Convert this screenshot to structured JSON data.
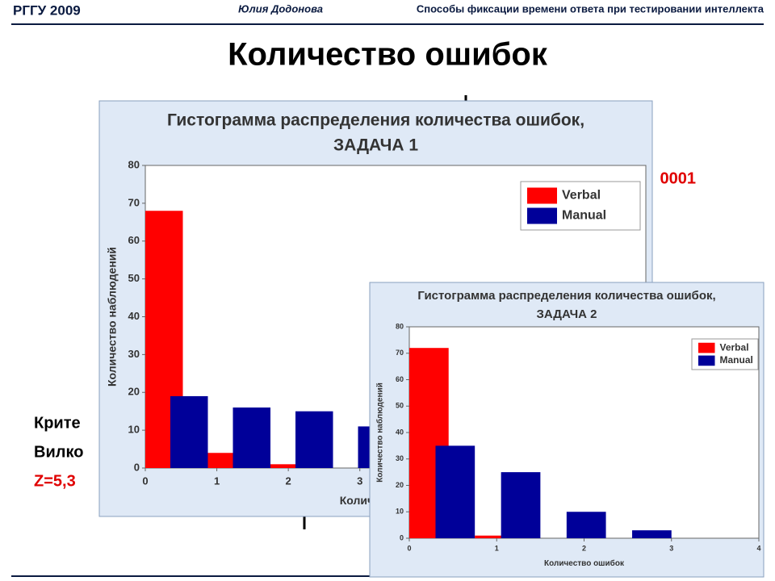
{
  "header": {
    "left": "РГГУ 2009",
    "author": "Юлия Додонова",
    "topic": "Способы фиксации времени ответа при тестировании интеллекта"
  },
  "title": "Количество ошибок",
  "background_text": [
    "0001",
    "Крите",
    "Вилко",
    "Z=5,3"
  ],
  "chart_data": [
    {
      "type": "histogram",
      "title": [
        "Гистограмма распределения количества ошибок,",
        "ЗАДАЧА 1"
      ],
      "x_label": "Количество ошибок",
      "y_label": "Количество наблюдений",
      "bins": [
        0,
        0.875,
        1.75,
        2.625,
        3.5
      ],
      "series": [
        {
          "name": "Verbal",
          "color": "#ff0000",
          "values": [
            68,
            4,
            1,
            0
          ]
        },
        {
          "name": "Manual",
          "color": "#000099",
          "values": [
            19,
            16,
            15,
            11
          ]
        }
      ],
      "xlim": [
        0,
        7
      ],
      "xticks": [
        0,
        1,
        2,
        3
      ],
      "ylim": [
        0,
        80
      ],
      "yticks": [
        0,
        10,
        20,
        30,
        40,
        50,
        60,
        70,
        80
      ],
      "legend": "top-right"
    },
    {
      "type": "histogram",
      "title": [
        "Гистограмма распределения количества ошибок,",
        "ЗАДАЧА 2"
      ],
      "x_label": "Количество ошибок",
      "y_label": "Количество наблюдений",
      "bins": [
        0,
        0.75,
        1.5,
        2.25,
        3
      ],
      "series": [
        {
          "name": "Verbal",
          "color": "#ff0000",
          "values": [
            72,
            1,
            0,
            0
          ]
        },
        {
          "name": "Manual",
          "color": "#000099",
          "values": [
            35,
            25,
            10,
            3
          ]
        }
      ],
      "xlim": [
        0,
        4
      ],
      "xticks": [
        0,
        1,
        2,
        3,
        4
      ],
      "ylim": [
        0,
        80
      ],
      "yticks": [
        0,
        10,
        20,
        30,
        40,
        50,
        60,
        70,
        80
      ],
      "legend": "top-right"
    }
  ]
}
